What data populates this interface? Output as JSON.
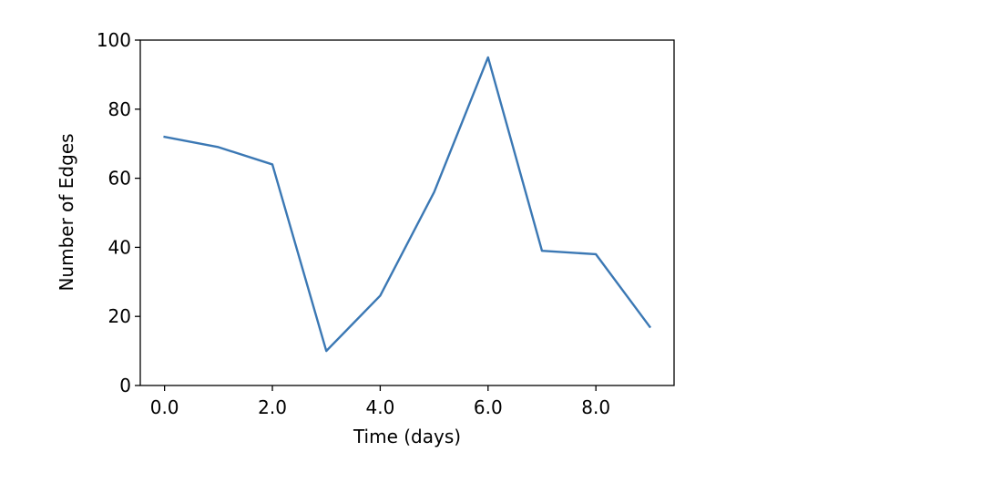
{
  "chart_data": {
    "type": "line",
    "title": "",
    "xlabel": "Time (days)",
    "ylabel": "Number of Edges",
    "xlim": [
      -0.45,
      9.45
    ],
    "ylim": [
      0,
      100
    ],
    "x_ticks": [
      0,
      2,
      4,
      6,
      8
    ],
    "x_tick_labels": [
      "0.0",
      "2.0",
      "4.0",
      "6.0",
      "8.0"
    ],
    "y_ticks": [
      0,
      20,
      40,
      60,
      80,
      100
    ],
    "y_tick_labels": [
      "0",
      "20",
      "40",
      "60",
      "80",
      "100"
    ],
    "grid": false,
    "series": [
      {
        "color": "#3b78b4",
        "x": [
          0,
          1,
          2,
          3,
          4,
          5,
          6,
          7,
          8,
          9
        ],
        "y": [
          72,
          69,
          64,
          10,
          26,
          56,
          95,
          39,
          38,
          17
        ]
      }
    ]
  }
}
